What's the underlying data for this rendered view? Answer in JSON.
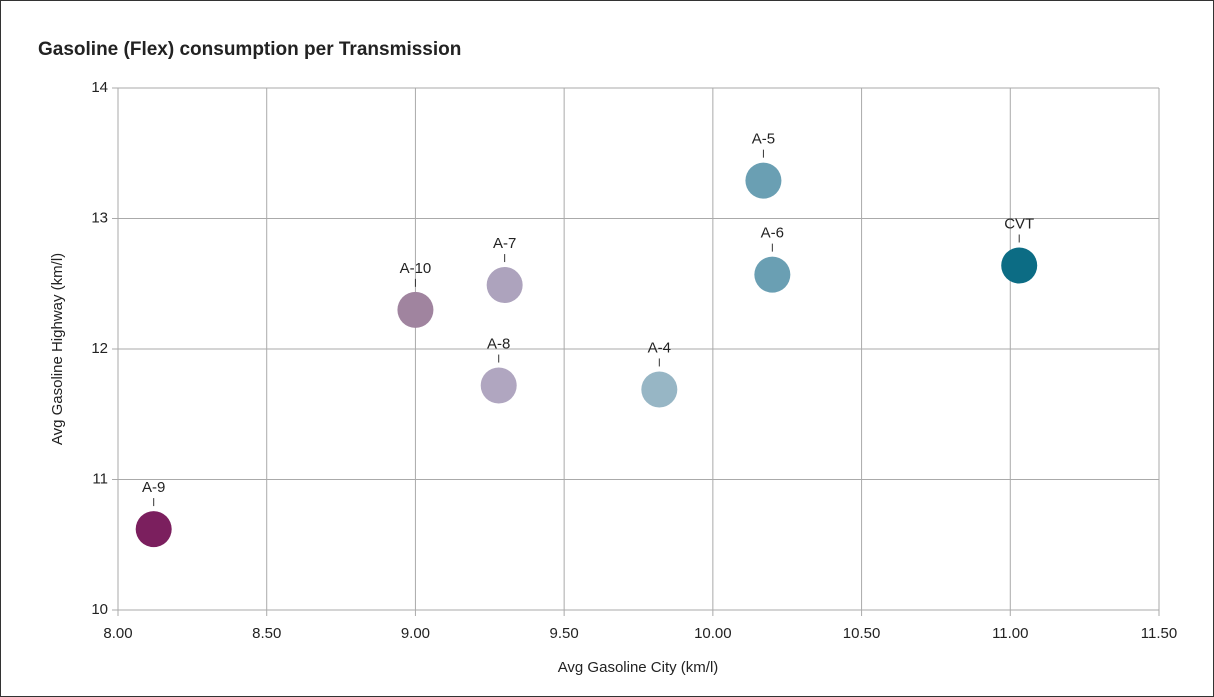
{
  "chart_data": {
    "type": "scatter",
    "title": "Gasoline (Flex) consumption per Transmission",
    "xlabel": "Avg Gasoline City (km/l)",
    "ylabel": "Avg Gasoline Highway (km/l)",
    "labels": [
      "A-9",
      "A-10",
      "A-7",
      "A-8",
      "A-4",
      "A-5",
      "A-6",
      "CVT"
    ],
    "x": [
      8.12,
      9.0,
      9.3,
      9.28,
      9.82,
      10.17,
      10.2,
      11.03
    ],
    "values": [
      10.62,
      12.3,
      12.49,
      11.72,
      11.69,
      13.29,
      12.57,
      12.64
    ],
    "colors": [
      "#7b1f5e",
      "#a0849f",
      "#ada3bd",
      "#b0a6c0",
      "#97b6c5",
      "#6a9fb3",
      "#6a9fb3",
      "#0c6c84"
    ],
    "xlim": [
      8.0,
      11.5
    ],
    "xticks": [
      {
        "value": 8.0,
        "label": "8.00"
      },
      {
        "value": 8.5,
        "label": "8.50"
      },
      {
        "value": 9.0,
        "label": "9.00"
      },
      {
        "value": 9.5,
        "label": "9.50"
      },
      {
        "value": 10.0,
        "label": "10.00"
      },
      {
        "value": 10.5,
        "label": "10.50"
      },
      {
        "value": 11.0,
        "label": "11.00"
      },
      {
        "value": 11.5,
        "label": "11.50"
      }
    ],
    "ylim": [
      10,
      14
    ],
    "yticks": [
      10,
      11,
      12,
      13,
      14
    ],
    "grid": true
  }
}
